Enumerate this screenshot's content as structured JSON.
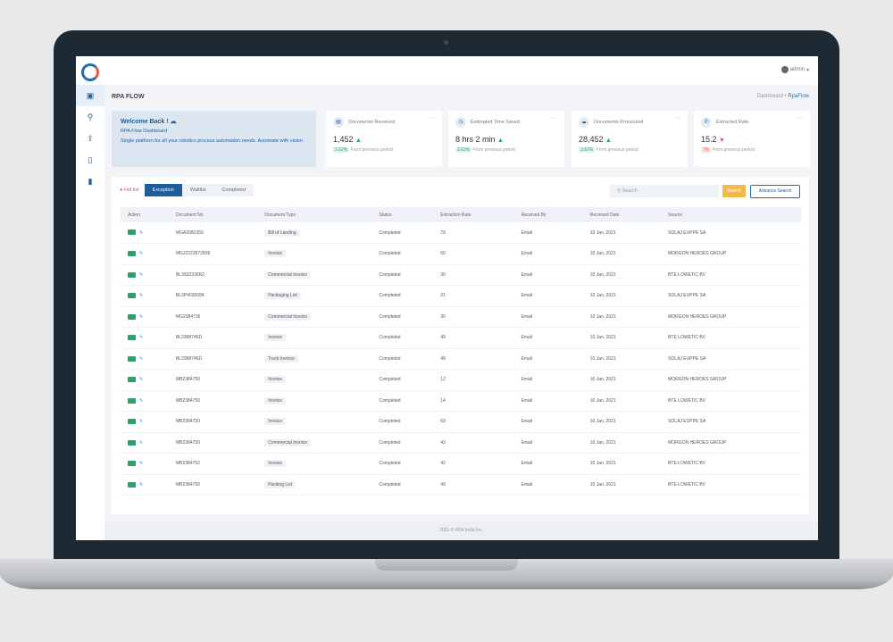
{
  "header": {
    "user": "admin"
  },
  "page": {
    "title": "RPA FLOW",
    "breadcrumb_root": "Dashboard",
    "breadcrumb_current": "RpaFlow"
  },
  "welcome": {
    "title": "Welcome Back ! ☁",
    "subtitle": "RPA Flow Dashboard",
    "text": "Single platform for all your robotics process automation needs. Automate with vision"
  },
  "cards": [
    {
      "icon": "document-icon",
      "label": "Documents Received",
      "value": "1,452",
      "trend": "up",
      "pct": "2.62%",
      "note": "From previous period"
    },
    {
      "icon": "clock-icon",
      "label": "Estimated Time Saved",
      "value": "8 hrs 2 min",
      "trend": "up",
      "pct": "2.62%",
      "note": "From previous period"
    },
    {
      "icon": "cloud-icon",
      "label": "Documents Processed",
      "value": "28,452",
      "trend": "up",
      "pct": "3.62%",
      "note": "From previous period"
    },
    {
      "icon": "phone-icon",
      "label": "Extracted Rate",
      "value": "15.2",
      "trend": "down",
      "pct": "7%",
      "note": "From previous period"
    }
  ],
  "toolbar": {
    "hotlist": "Hot list",
    "tabs": [
      "Exception",
      "Waitlist",
      "Completed"
    ],
    "active_tab": 0,
    "search_placeholder": "Search",
    "search_button": "Search",
    "advance_button": "Advance Search"
  },
  "table": {
    "columns": [
      "Action",
      "Document No",
      "Document Type",
      "Status",
      "Extraction Rate",
      "Received By",
      "Received Date",
      "Source"
    ],
    "rows": [
      [
        "MGA2082359",
        "Bill of Landing",
        "Completed",
        "79",
        "Email",
        "10 Jan, 2021",
        "SOLAJ EUPPE SA"
      ],
      [
        "MGJ2223572836",
        "Invoice",
        "Completed",
        "60",
        "Email",
        "10 Jan, 2021",
        "MORGON HEROES GROUP"
      ],
      [
        "BL3632336R2",
        "Commercial Invoice",
        "Completed",
        "30",
        "Email",
        "10 Jan, 2021",
        "BTE LOWETIC BV"
      ],
      [
        "BL3P4030084",
        "Packaging List",
        "Completed",
        "21",
        "Email",
        "10 Jan, 2021",
        "SOLAJ EUPPE SA"
      ],
      [
        "MG2384736",
        "Commercial Invoice",
        "Completed",
        "30",
        "Email",
        "10 Jan, 2021",
        "MORGON HEROES GROUP"
      ],
      [
        "BL2998745D",
        "Invoice",
        "Completed",
        "49",
        "Email",
        "10 Jan, 2021",
        "BTE LOWETIC BV"
      ],
      [
        "BL2998745D",
        "Truck Invoice",
        "Completed",
        "49",
        "Email",
        "10 Jan, 2021",
        "SOLAJ EUPPE SA"
      ],
      [
        "MB2384750",
        "Invoice",
        "Completed",
        "12",
        "Email",
        "10 Jan, 2021",
        "MORGON HEROES GROUP"
      ],
      [
        "MB2384750",
        "Invoice",
        "Completed",
        "14",
        "Email",
        "10 Jan, 2021",
        "BTE LOWETIC BV"
      ],
      [
        "MB2384750",
        "Invoice",
        "Completed",
        "69",
        "Email",
        "10 Jan, 2021",
        "SOLAJ EUPPE SA"
      ],
      [
        "MB2384750",
        "Commercial Invoice",
        "Completed",
        "43",
        "Email",
        "10 Jan, 2021",
        "MORGON HEROES GROUP"
      ],
      [
        "MB2384752",
        "Invoice",
        "Completed",
        "42",
        "Email",
        "10 Jan, 2021",
        "BTE LOWETIC BV"
      ],
      [
        "MB2384750",
        "Packing List",
        "Completed",
        "49",
        "Email",
        "10 Jan, 2021",
        "BTE LOWETIC BV"
      ]
    ]
  },
  "footer": "2021 © RPA India Inc.",
  "colors": {
    "primary": "#1f5d9a",
    "accent": "#f2b94b",
    "success": "#27a36b",
    "danger": "#e05555"
  }
}
